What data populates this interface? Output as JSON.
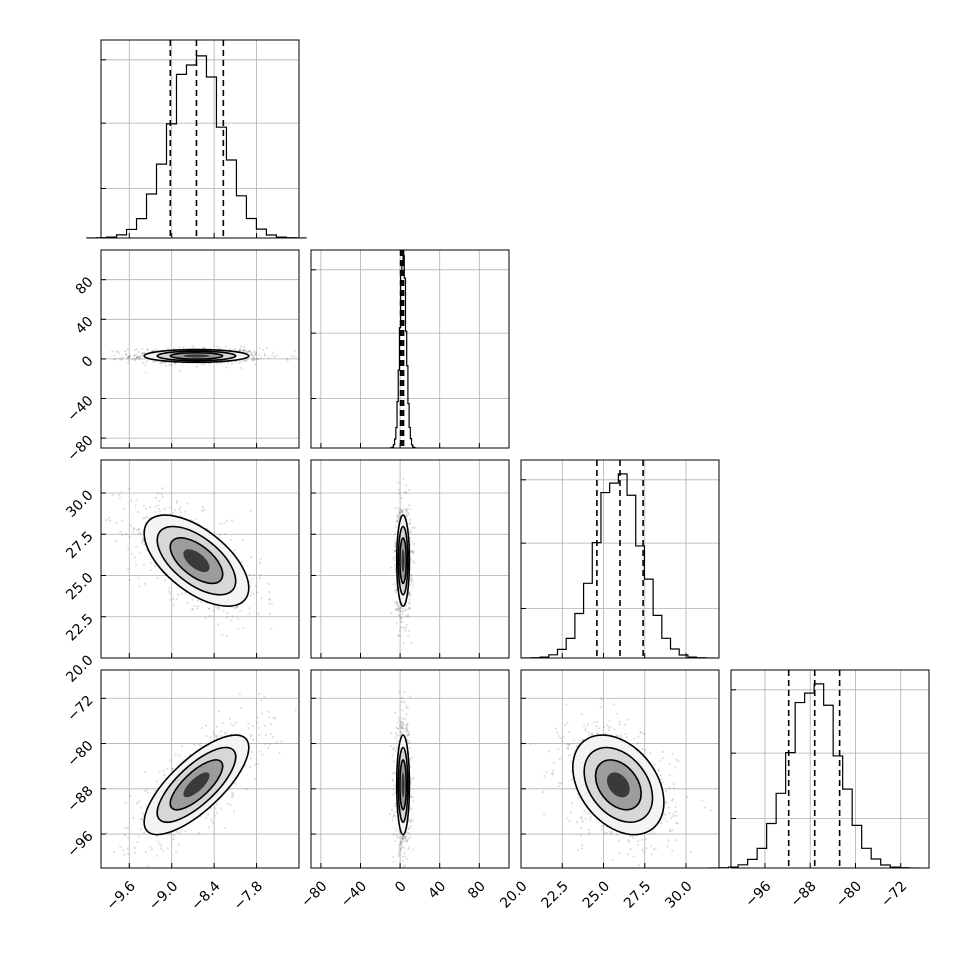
{
  "chart_data": {
    "type": "corner",
    "title": "",
    "grid": true,
    "parameters": [
      {
        "xlim": [
          -10.0,
          -7.2
        ],
        "ticks": [
          -9.6,
          -9.0,
          -8.4,
          -7.8
        ],
        "tick_labels": [
          "−9.6",
          "−9.0",
          "−8.4",
          "−7.8"
        ],
        "mean": -8.65,
        "sd": 0.37,
        "quantiles": [
          -9.02,
          -8.65,
          -8.27
        ],
        "hist_peak": 0.92
      },
      {
        "xlim": [
          -90,
          110
        ],
        "ticks": [
          -80,
          -40,
          0,
          40,
          80
        ],
        "tick_labels": [
          "−80",
          "−40",
          "0",
          "40",
          "80"
        ],
        "mean": 3.0,
        "sd": 3.2,
        "quantiles": [
          0.5,
          2.0,
          3.5
        ],
        "hist_peak": 0.97
      },
      {
        "xlim": [
          20.0,
          32.0
        ],
        "ticks": [
          20.0,
          22.5,
          25.0,
          27.5,
          30.0
        ],
        "tick_labels": [
          "20.0",
          "22.5",
          "25.0",
          "27.5",
          "30.0"
        ],
        "mean": 25.9,
        "sd": 1.38,
        "quantiles": [
          24.6,
          26.0,
          27.4
        ],
        "hist_peak": 0.93
      },
      {
        "xlim": [
          -102,
          -67
        ],
        "ticks": [
          -96,
          -88,
          -80,
          -72
        ],
        "tick_labels": [
          "−96",
          "−88",
          "−80",
          "−72"
        ],
        "mean": -87.3,
        "sd": 4.4,
        "quantiles": [
          -91.8,
          -87.2,
          -82.8
        ],
        "hist_peak": 0.93
      }
    ],
    "pairs": [
      {
        "row": 1,
        "col": 0,
        "rho": 0.0
      },
      {
        "row": 2,
        "col": 0,
        "rho": -0.6
      },
      {
        "row": 2,
        "col": 1,
        "rho": 0.0
      },
      {
        "row": 3,
        "col": 0,
        "rho": 0.75
      },
      {
        "row": 3,
        "col": 1,
        "rho": 0.0
      },
      {
        "row": 3,
        "col": 2,
        "rho": -0.35
      }
    ]
  }
}
